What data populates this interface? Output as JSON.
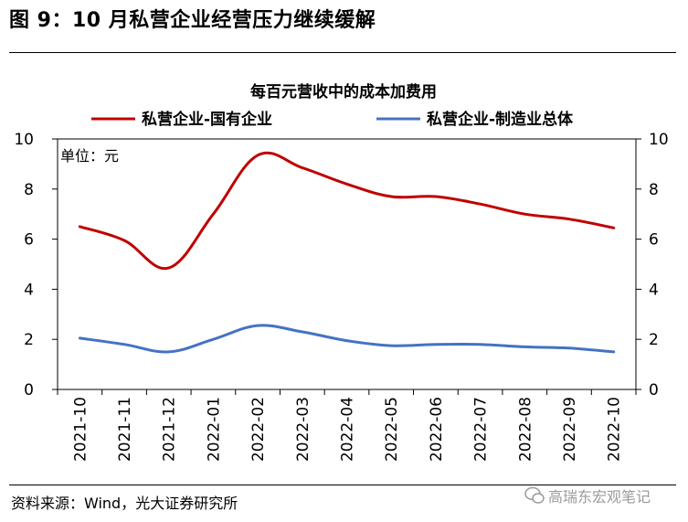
{
  "figure": {
    "title": "图 9：10 月私营企业经营压力继续缓解",
    "source": "资料来源：Wind，光大证券研究所",
    "watermark": "高瑞东宏观笔记"
  },
  "chart_data": {
    "type": "line",
    "title": "每百元营收中的成本加费用",
    "unit_label": "单位：元",
    "categories": [
      "2021-10",
      "2021-11",
      "2021-12",
      "2022-01",
      "2022-02",
      "2022-03",
      "2022-04",
      "2022-05",
      "2022-06",
      "2022-07",
      "2022-08",
      "2022-09",
      "2022-10"
    ],
    "series": [
      {
        "name": "私营企业-国有企业",
        "color": "#c00000",
        "values": [
          6.5,
          5.95,
          4.85,
          7.0,
          9.35,
          8.85,
          8.2,
          7.7,
          7.7,
          7.4,
          7.0,
          6.8,
          6.45
        ]
      },
      {
        "name": "私营企业-制造业总体",
        "color": "#4472c4",
        "values": [
          2.05,
          1.8,
          1.5,
          2.0,
          2.55,
          2.3,
          1.95,
          1.75,
          1.8,
          1.8,
          1.7,
          1.65,
          1.5
        ]
      }
    ],
    "ylim": [
      0,
      10
    ],
    "yticks": [
      0,
      2,
      4,
      6,
      8,
      10
    ],
    "right_axis_ticks": [
      0,
      2,
      4,
      6,
      8,
      10
    ],
    "legend_position": "top",
    "grid": false
  }
}
